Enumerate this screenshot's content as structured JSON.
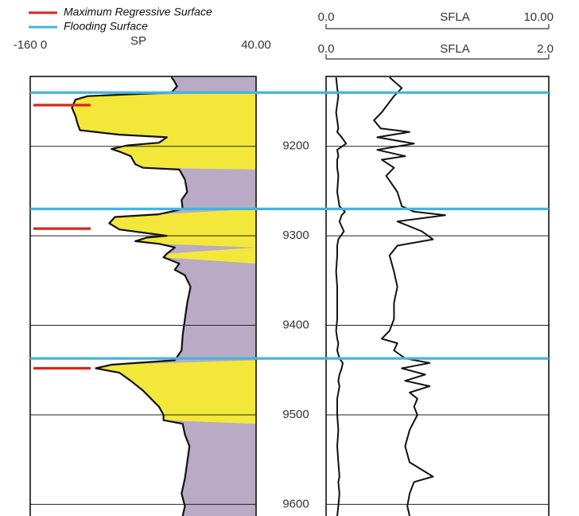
{
  "chart_data": [
    {
      "type": "well-log-sp",
      "xlim": [
        -160,
        40
      ],
      "xticks": [
        {
          "value": -160,
          "label": "-160 0"
        },
        {
          "value": 40,
          "label": "40.00"
        }
      ],
      "ylim": [
        9122,
        9613
      ],
      "yticks": [
        9200,
        9300,
        9400,
        9500,
        9600
      ],
      "depths": [
        9123,
        9126,
        9133,
        9140,
        9144,
        9148,
        9157,
        9166,
        9175,
        9182,
        9187,
        9190,
        9196,
        9199,
        9203,
        9206,
        9211,
        9220,
        9224,
        9226,
        9237,
        9251,
        9260,
        9270,
        9276,
        9279,
        9286,
        9293,
        9300,
        9302,
        9306,
        9309,
        9313,
        9320,
        9324,
        9331,
        9338,
        9344,
        9357,
        9375,
        9393,
        9411,
        9428,
        9439,
        9444,
        9448,
        9453,
        9462,
        9473,
        9482,
        9491,
        9500,
        9506,
        9510,
        9522,
        9535,
        9553,
        9571,
        9588,
        9602,
        9613
      ],
      "series": [
        {
          "name": "SP",
          "color": "#111111",
          "sand_color": "#f3e83a",
          "shale_color": "#b9abc6",
          "values": [
            -35,
            -33,
            -30,
            -35,
            -109,
            -120,
            -123,
            -120,
            -118,
            -116,
            -81,
            -39,
            -46,
            -74,
            -88,
            -81,
            -71,
            -67,
            -60,
            -28,
            -23,
            -21,
            -26,
            -25,
            -46,
            -85,
            -90,
            -81,
            -39,
            -57,
            -67,
            -46,
            -32,
            -39,
            -42,
            -28,
            -32,
            -23,
            -18,
            -21,
            -23,
            -25,
            -26,
            -32,
            -88,
            -102,
            -81,
            -71,
            -60,
            -53,
            -46,
            -42,
            -42,
            -25,
            -23,
            -19,
            -21,
            -23,
            -26,
            -23,
            -25
          ]
        }
      ]
    },
    {
      "type": "well-log-resistivity",
      "ylim": [
        9122,
        9613
      ],
      "yticks": [
        9200,
        9300,
        9400,
        9500,
        9600
      ],
      "depths": [
        9123,
        9135,
        9144,
        9162,
        9171,
        9180,
        9184,
        9190,
        9197,
        9204,
        9211,
        9215,
        9224,
        9233,
        9251,
        9267,
        9273,
        9277,
        9284,
        9295,
        9304,
        9311,
        9322,
        9340,
        9357,
        9375,
        9393,
        9406,
        9415,
        9420,
        9428,
        9437,
        9442,
        9448,
        9455,
        9462,
        9468,
        9475,
        9482,
        9491,
        9500,
        9517,
        9535,
        9553,
        9569,
        9575,
        9588,
        9602,
        9613
      ],
      "series": [
        {
          "name": "SFLA",
          "color": "#111111",
          "xlim": [
            0,
            10
          ],
          "xticks": [
            {
              "value": 0,
              "label": "0.0"
            },
            {
              "value": 10,
              "label": "10.00"
            }
          ],
          "values": [
            0.45,
            0.5,
            0.55,
            0.45,
            0.5,
            0.55,
            0.5,
            0.7,
            0.9,
            0.5,
            0.55,
            0.5,
            0.5,
            0.55,
            0.5,
            0.6,
            0.85,
            0.7,
            0.6,
            0.8,
            0.55,
            0.5,
            0.5,
            0.45,
            0.5,
            0.5,
            0.5,
            0.45,
            0.5,
            0.55,
            0.5,
            0.6,
            0.75,
            0.7,
            0.6,
            0.55,
            0.6,
            0.55,
            0.5,
            0.5,
            0.5,
            0.55,
            0.5,
            0.55,
            0.6,
            0.55,
            0.6,
            0.55,
            0.5
          ]
        },
        {
          "name": "SFLA",
          "color": "#111111",
          "xlim": [
            0,
            2
          ],
          "xticks": [
            {
              "value": 0,
              "label": "0.0"
            },
            {
              "value": 2,
              "label": "2.0"
            }
          ],
          "values": [
            0.57,
            0.68,
            0.61,
            0.5,
            0.43,
            0.49,
            0.75,
            0.46,
            0.79,
            0.46,
            0.71,
            0.5,
            0.61,
            0.54,
            0.64,
            0.68,
            0.79,
            1.07,
            0.64,
            0.86,
            0.96,
            0.64,
            0.57,
            0.61,
            0.64,
            0.61,
            0.61,
            0.57,
            0.5,
            0.64,
            0.61,
            0.71,
            0.93,
            0.68,
            0.89,
            0.71,
            0.93,
            0.75,
            0.82,
            0.79,
            0.82,
            0.75,
            0.71,
            0.75,
            0.96,
            0.79,
            0.75,
            0.73,
            0.75
          ]
        }
      ]
    }
  ],
  "markers": [
    {
      "name": "Maximum Regressive Surface",
      "color": "#d8261e",
      "depths": [
        9154,
        9292,
        9448
      ]
    },
    {
      "name": "Flooding Surface",
      "color": "#45b4de",
      "depths": [
        9140,
        9270,
        9437
      ]
    }
  ]
}
